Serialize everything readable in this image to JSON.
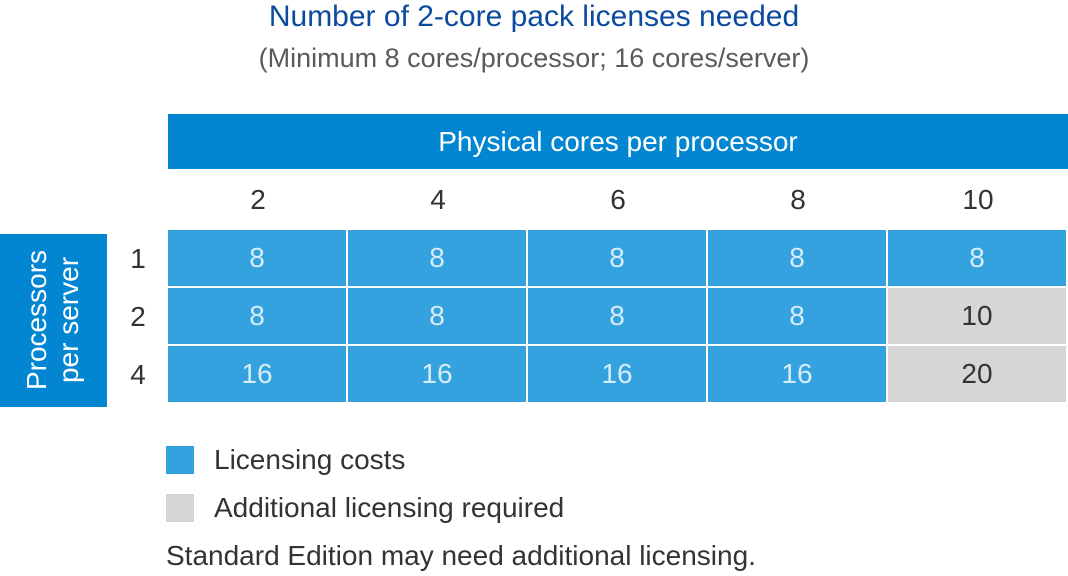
{
  "title": "Number of 2-core pack licenses needed",
  "subtitle": "(Minimum 8 cores/processor; 16 cores/server)",
  "column_header": "Physical cores per processor",
  "columns": [
    "2",
    "4",
    "6",
    "8",
    "10"
  ],
  "row_header": {
    "line1": "Processors",
    "line2": "per server"
  },
  "rows": [
    {
      "label": "1",
      "cells": [
        {
          "value": "8",
          "kind": "cost"
        },
        {
          "value": "8",
          "kind": "cost"
        },
        {
          "value": "8",
          "kind": "cost"
        },
        {
          "value": "8",
          "kind": "cost"
        },
        {
          "value": "8",
          "kind": "cost"
        }
      ]
    },
    {
      "label": "2",
      "cells": [
        {
          "value": "8",
          "kind": "cost"
        },
        {
          "value": "8",
          "kind": "cost"
        },
        {
          "value": "8",
          "kind": "cost"
        },
        {
          "value": "8",
          "kind": "cost"
        },
        {
          "value": "10",
          "kind": "extra"
        }
      ]
    },
    {
      "label": "4",
      "cells": [
        {
          "value": "16",
          "kind": "cost"
        },
        {
          "value": "16",
          "kind": "cost"
        },
        {
          "value": "16",
          "kind": "cost"
        },
        {
          "value": "16",
          "kind": "cost"
        },
        {
          "value": "20",
          "kind": "extra"
        }
      ]
    }
  ],
  "legend": [
    {
      "label": "Licensing costs",
      "color": "#33a2df"
    },
    {
      "label": "Additional licensing required",
      "color": "#d6d6d6"
    }
  ],
  "note": "Standard Edition may need additional licensing.",
  "colors": {
    "header_blue": "#0286d1",
    "cost_blue": "#33a2df",
    "extra_gray": "#d6d6d6",
    "title_blue": "#0b4a9e"
  }
}
